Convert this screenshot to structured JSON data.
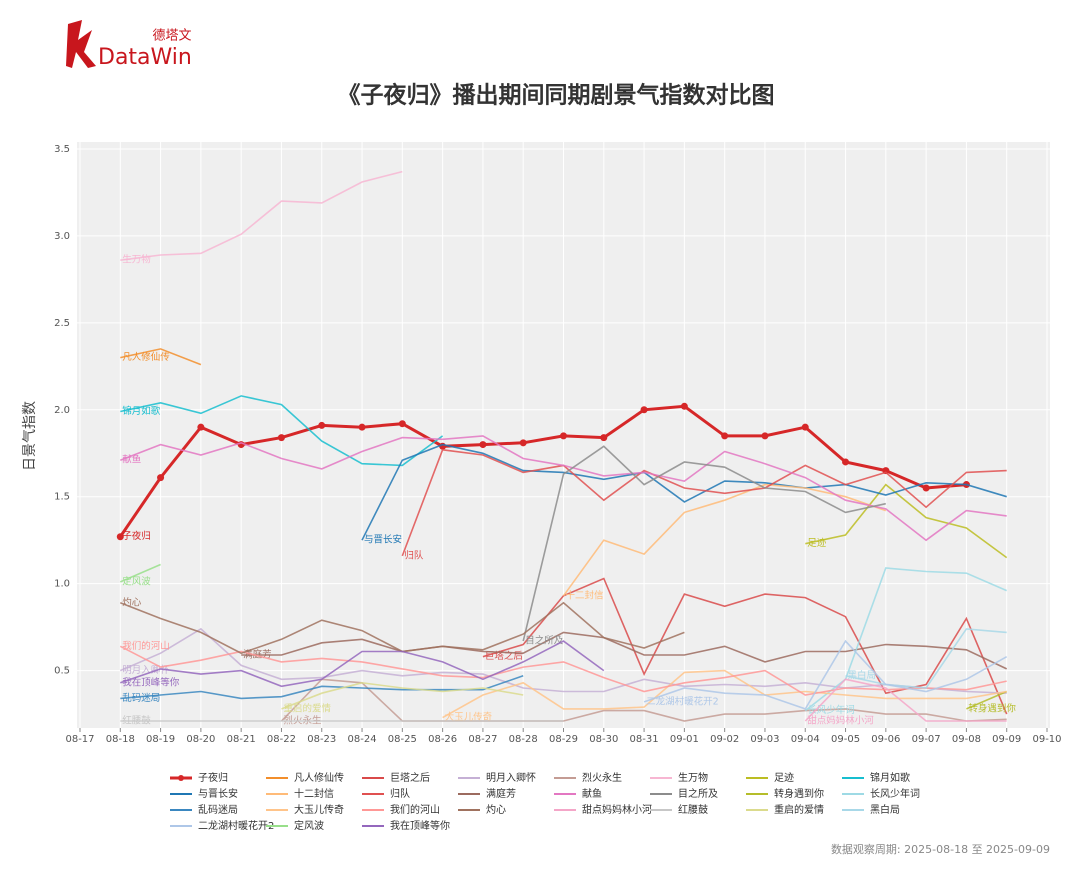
{
  "logo": {
    "cn": "德塔文",
    "en": "DataWin"
  },
  "chart_data": {
    "type": "line",
    "title": "《子夜归》播出期间同期剧景气指数对比图",
    "ylabel": "日景气指数",
    "footnote": "数据观察周期: 2025-08-18 至 2025-09-09",
    "grid": true,
    "categories": [
      "08-17",
      "08-18",
      "08-19",
      "08-20",
      "08-21",
      "08-22",
      "08-23",
      "08-24",
      "08-25",
      "08-26",
      "08-27",
      "08-28",
      "08-29",
      "08-30",
      "08-31",
      "09-01",
      "09-02",
      "09-03",
      "09-04",
      "09-05",
      "09-06",
      "09-07",
      "09-08",
      "09-09",
      "09-10"
    ],
    "ylim": [
      0.17,
      3.54
    ],
    "yticks": [
      0.5,
      {
        "value": 1,
        "label": "1.0"
      },
      1.5,
      {
        "value": 2,
        "label": "2.0"
      },
      2.5,
      {
        "value": 3,
        "label": "3.0"
      },
      3.5
    ],
    "series": [
      {
        "name": "子夜归",
        "color": "#d62728",
        "markers": true,
        "values": [
          null,
          1.27,
          1.61,
          1.9,
          1.8,
          1.84,
          1.91,
          1.9,
          1.92,
          1.79,
          1.8,
          1.81,
          1.85,
          1.84,
          2.0,
          2.02,
          1.85,
          1.85,
          1.9,
          1.7,
          1.65,
          1.55,
          1.57,
          null,
          null
        ]
      },
      {
        "name": "凡人修仙传",
        "color": "#f28e2b",
        "values": [
          null,
          2.3,
          2.35,
          2.26,
          null,
          null,
          null,
          null,
          null,
          null,
          null,
          null,
          null,
          null,
          null,
          null,
          null,
          null,
          null,
          null,
          null,
          null,
          null,
          null,
          null
        ]
      },
      {
        "name": "巨塔之后",
        "color": "#d94a4a",
        "values": [
          null,
          null,
          null,
          null,
          null,
          null,
          null,
          null,
          null,
          null,
          0.58,
          0.65,
          0.93,
          1.03,
          0.48,
          0.94,
          0.87,
          0.94,
          0.92,
          0.81,
          0.37,
          0.42,
          0.8,
          0.25,
          null
        ]
      },
      {
        "name": "明月入卿怀",
        "color": "#c5b0d5",
        "values": [
          null,
          0.5,
          0.6,
          0.74,
          0.53,
          0.45,
          0.46,
          0.5,
          0.47,
          0.49,
          0.48,
          0.4,
          0.38,
          0.38,
          0.45,
          0.41,
          0.42,
          0.41,
          0.43,
          0.4,
          0.42,
          0.4,
          0.38,
          0.37,
          null
        ]
      },
      {
        "name": "烈火永生",
        "color": "#c49c94",
        "values": [
          null,
          null,
          null,
          null,
          null,
          0.21,
          0.45,
          0.43,
          0.21,
          0.21,
          0.21,
          0.21,
          0.21,
          0.27,
          0.27,
          0.21,
          0.25,
          0.25,
          0.27,
          0.28,
          0.25,
          0.25,
          0.21,
          0.22,
          null
        ]
      },
      {
        "name": "生万物",
        "color": "#f7b6d2",
        "values": [
          null,
          2.86,
          2.89,
          2.9,
          3.01,
          3.2,
          3.19,
          3.31,
          3.37,
          null,
          null,
          null,
          null,
          null,
          null,
          null,
          null,
          null,
          null,
          null,
          null,
          null,
          null,
          null,
          null
        ]
      },
      {
        "name": "足迹",
        "color": "#bcbd22",
        "values": [
          null,
          null,
          null,
          null,
          null,
          null,
          null,
          null,
          null,
          null,
          null,
          null,
          null,
          null,
          null,
          null,
          null,
          null,
          1.23,
          1.28,
          1.57,
          1.38,
          1.32,
          1.15,
          null
        ]
      },
      {
        "name": "锦月如歌",
        "color": "#17becf",
        "values": [
          null,
          1.99,
          2.04,
          1.98,
          2.08,
          2.03,
          1.82,
          1.69,
          1.68,
          1.85,
          null,
          null,
          null,
          null,
          null,
          null,
          null,
          null,
          null,
          null,
          null,
          null,
          null,
          null,
          null
        ]
      },
      {
        "name": "与晋长安",
        "color": "#1f77b4",
        "values": [
          null,
          null,
          null,
          null,
          null,
          null,
          null,
          1.25,
          1.71,
          1.8,
          1.75,
          1.65,
          1.64,
          1.6,
          1.64,
          1.47,
          1.59,
          1.58,
          1.55,
          1.57,
          1.51,
          1.58,
          1.57,
          1.5,
          null
        ]
      },
      {
        "name": "十二封信",
        "color": "#ffbb78",
        "values": [
          null,
          null,
          null,
          null,
          null,
          null,
          null,
          null,
          null,
          null,
          null,
          null,
          0.93,
          1.25,
          1.17,
          1.41,
          1.48,
          1.57,
          1.55,
          1.5,
          1.42,
          null,
          null,
          null,
          null
        ]
      },
      {
        "name": "归队",
        "color": "#e05050",
        "values": [
          null,
          null,
          null,
          null,
          null,
          null,
          null,
          null,
          1.16,
          1.77,
          1.74,
          1.64,
          1.68,
          1.48,
          1.65,
          1.55,
          1.52,
          1.55,
          1.68,
          1.57,
          1.64,
          1.44,
          1.64,
          1.65,
          null
        ]
      },
      {
        "name": "满庭芳",
        "color": "#9c6b5f",
        "values": [
          null,
          null,
          null,
          null,
          0.59,
          0.59,
          0.66,
          0.68,
          0.61,
          0.64,
          0.61,
          0.6,
          0.72,
          0.69,
          0.59,
          0.59,
          0.64,
          0.55,
          0.61,
          0.61,
          0.65,
          0.64,
          0.62,
          0.51,
          null
        ]
      },
      {
        "name": "献鱼",
        "color": "#e377c2",
        "values": [
          null,
          1.71,
          1.8,
          1.74,
          1.81,
          1.72,
          1.66,
          1.76,
          1.84,
          1.83,
          1.85,
          1.72,
          1.68,
          1.62,
          1.64,
          1.59,
          1.76,
          1.69,
          1.61,
          1.48,
          1.43,
          1.25,
          1.42,
          1.39,
          null
        ]
      },
      {
        "name": "目之所及",
        "color": "#8c8c8c",
        "values": [
          null,
          null,
          null,
          null,
          null,
          null,
          null,
          null,
          null,
          null,
          null,
          0.67,
          1.63,
          1.79,
          1.57,
          1.7,
          1.67,
          1.55,
          1.53,
          1.41,
          1.46,
          null,
          null,
          null,
          null
        ]
      },
      {
        "name": "转身遇到你",
        "color": "#b5bd2a",
        "values": [
          null,
          null,
          null,
          null,
          null,
          null,
          null,
          null,
          null,
          null,
          null,
          null,
          null,
          null,
          null,
          null,
          null,
          null,
          null,
          null,
          null,
          null,
          0.28,
          0.38,
          null
        ]
      },
      {
        "name": "长风少年词",
        "color": "#9edae5",
        "values": [
          null,
          null,
          null,
          null,
          null,
          null,
          null,
          null,
          null,
          null,
          null,
          null,
          null,
          null,
          null,
          null,
          null,
          null,
          0.27,
          0.45,
          1.09,
          1.07,
          1.06,
          0.96,
          null
        ]
      },
      {
        "name": "乱码迷局",
        "color": "#3a87c0",
        "values": [
          null,
          0.34,
          0.36,
          0.38,
          0.34,
          0.35,
          0.41,
          0.4,
          0.39,
          0.39,
          0.39,
          0.47,
          null,
          null,
          null,
          null,
          null,
          null,
          null,
          null,
          null,
          null,
          null,
          null,
          null
        ]
      },
      {
        "name": "大玉儿传奇",
        "color": "#ffc48a",
        "values": [
          null,
          null,
          null,
          null,
          null,
          null,
          null,
          null,
          null,
          0.23,
          0.36,
          0.43,
          0.28,
          0.28,
          0.29,
          0.49,
          0.5,
          0.36,
          0.38,
          0.36,
          0.34,
          0.34,
          0.34,
          0.38,
          null
        ]
      },
      {
        "name": "我们的河山",
        "color": "#ff9896",
        "values": [
          null,
          0.64,
          0.52,
          0.56,
          0.61,
          0.55,
          0.57,
          0.55,
          0.51,
          0.47,
          0.46,
          0.52,
          0.55,
          0.46,
          0.38,
          0.43,
          0.46,
          0.5,
          0.36,
          0.4,
          0.39,
          0.4,
          0.39,
          0.44,
          null
        ]
      },
      {
        "name": "灼心",
        "color": "#a0725f",
        "values": [
          null,
          0.89,
          0.8,
          0.72,
          0.6,
          0.68,
          0.79,
          0.73,
          0.61,
          0.64,
          0.62,
          0.71,
          0.89,
          0.69,
          0.63,
          0.72,
          null,
          null,
          null,
          null,
          null,
          null,
          null,
          null,
          null
        ]
      },
      {
        "name": "甜点妈妈林小河",
        "color": "#f4a6c8",
        "values": [
          null,
          null,
          null,
          null,
          null,
          null,
          null,
          null,
          null,
          null,
          null,
          null,
          null,
          null,
          null,
          null,
          null,
          null,
          0.21,
          0.45,
          0.4,
          0.21,
          0.21,
          0.21,
          null
        ]
      },
      {
        "name": "红腰鼓",
        "color": "#c7c7c7",
        "values": [
          null,
          0.21,
          0.21,
          0.21,
          0.21,
          0.21,
          0.21,
          0.21,
          0.21,
          0.21,
          0.21,
          0.21,
          0.21,
          null,
          null,
          null,
          null,
          null,
          null,
          null,
          null,
          null,
          null,
          null,
          null
        ]
      },
      {
        "name": "重启的爱情",
        "color": "#dbdb8d",
        "values": [
          null,
          null,
          null,
          null,
          null,
          0.28,
          0.37,
          0.43,
          0.4,
          0.38,
          0.4,
          0.36,
          null,
          null,
          null,
          null,
          null,
          null,
          null,
          null,
          null,
          null,
          null,
          null,
          null
        ]
      },
      {
        "name": "黑白局",
        "color": "#a8d8e8",
        "values": [
          null,
          null,
          null,
          null,
          null,
          null,
          null,
          null,
          null,
          null,
          null,
          null,
          null,
          null,
          null,
          null,
          null,
          null,
          null,
          0.47,
          0.42,
          0.4,
          0.74,
          0.72,
          null
        ]
      },
      {
        "name": "二龙湖村暖花开2",
        "color": "#aec7e8",
        "values": [
          null,
          null,
          null,
          null,
          null,
          null,
          null,
          null,
          null,
          null,
          null,
          null,
          null,
          null,
          0.32,
          0.4,
          0.37,
          0.36,
          0.28,
          0.67,
          0.42,
          0.38,
          0.45,
          0.58,
          null
        ]
      },
      {
        "name": "定风波",
        "color": "#98df8a",
        "values": [
          null,
          1.01,
          1.11,
          null,
          null,
          null,
          null,
          null,
          null,
          null,
          null,
          null,
          null,
          null,
          null,
          null,
          null,
          null,
          null,
          null,
          null,
          null,
          null,
          null,
          null
        ]
      },
      {
        "name": "我在顶峰等你",
        "color": "#9467bd",
        "values": [
          null,
          0.43,
          0.51,
          0.48,
          0.5,
          0.41,
          0.45,
          0.61,
          0.61,
          0.55,
          0.45,
          0.55,
          0.67,
          0.5,
          null,
          null,
          null,
          null,
          null,
          null,
          null,
          null,
          null,
          null,
          null
        ]
      }
    ]
  }
}
